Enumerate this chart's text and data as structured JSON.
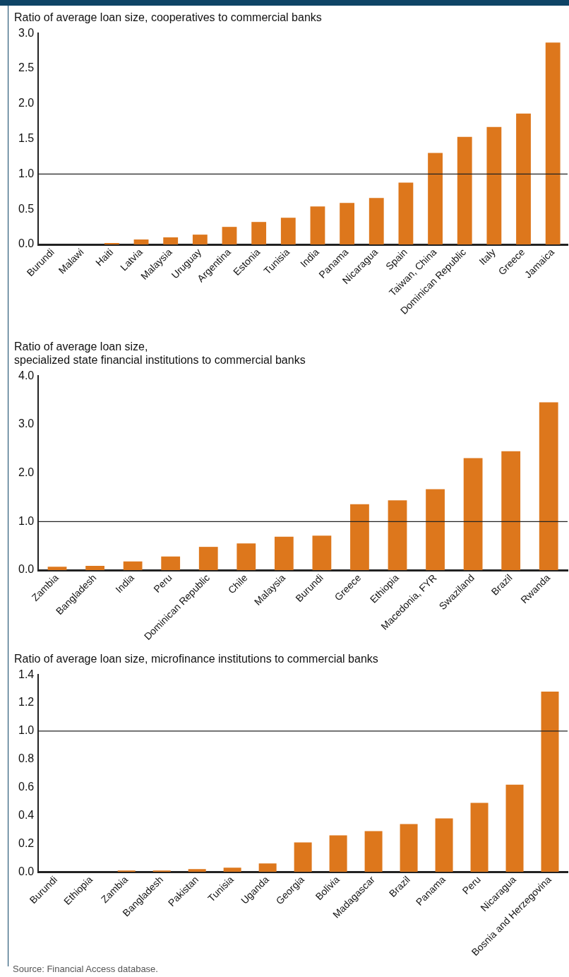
{
  "chart_data": [
    {
      "type": "bar",
      "title": "Ratio of average loan size, cooperatives to commercial banks",
      "categories": [
        "Burundi",
        "Malawi",
        "Haiti",
        "Latvia",
        "Malaysia",
        "Uruguay",
        "Argentina",
        "Estonia",
        "Tunisia",
        "India",
        "Panama",
        "Nicaragua",
        "Spain",
        "Taiwan, China",
        "Dominican Republic",
        "Italy",
        "Greece",
        "Jamaica"
      ],
      "values": [
        0,
        0,
        0.02,
        0.07,
        0.1,
        0.14,
        0.25,
        0.32,
        0.38,
        0.54,
        0.59,
        0.66,
        0.88,
        1.3,
        1.53,
        1.67,
        1.86,
        2.87
      ],
      "color": "#dd771c",
      "ylim": [
        0,
        3
      ],
      "yticks": [
        {
          "value": 0,
          "label": "0.0"
        },
        {
          "value": 0.5,
          "label": "0.5"
        },
        {
          "value": 1,
          "label": "1.0"
        },
        {
          "value": 1.5,
          "label": "1.5"
        },
        {
          "value": 2,
          "label": "2.0"
        },
        {
          "value": 2.5,
          "label": "2.5"
        },
        {
          "value": 3,
          "label": "3.0"
        }
      ],
      "ref_lines": [
        {
          "axis": "y",
          "value": 1,
          "color": "#222222"
        }
      ],
      "grid": false,
      "legend": false
    },
    {
      "type": "bar",
      "title": "Ratio of average loan size,\nspecialized state financial institutions to commercial banks",
      "categories": [
        "Zambia",
        "Bangladesh",
        "India",
        "Peru",
        "Dominican Republic",
        "Chile",
        "Malaysia",
        "Burundi",
        "Greece",
        "Ethiopia",
        "Macedonia, FYR",
        "Swaziland",
        "Brazil",
        "Rwanda"
      ],
      "values": [
        0.07,
        0.09,
        0.18,
        0.28,
        0.48,
        0.55,
        0.69,
        0.71,
        1.36,
        1.44,
        1.67,
        2.31,
        2.45,
        3.46
      ],
      "color": "#dd771c",
      "ylim": [
        0,
        4
      ],
      "yticks": [
        {
          "value": 0,
          "label": "0.0"
        },
        {
          "value": 1,
          "label": "1.0"
        },
        {
          "value": 2,
          "label": "2.0"
        },
        {
          "value": 3,
          "label": "3.0"
        },
        {
          "value": 4,
          "label": "4.0"
        }
      ],
      "ref_lines": [
        {
          "axis": "y",
          "value": 1,
          "color": "#222222"
        }
      ],
      "grid": false,
      "legend": false
    },
    {
      "type": "bar",
      "title": "Ratio of average loan size, microfinance institutions to commercial banks",
      "categories": [
        "Burundi",
        "Ethiopia",
        "Zambia",
        "Bangladesh",
        "Pakistan",
        "Tunisia",
        "Uganda",
        "Georgia",
        "Bolivia",
        "Madagascar",
        "Brazil",
        "Panama",
        "Peru",
        "Nicaragua",
        "Bosnia and Herzegovina"
      ],
      "values": [
        0,
        0,
        0.01,
        0.01,
        0.02,
        0.03,
        0.06,
        0.21,
        0.26,
        0.29,
        0.34,
        0.38,
        0.49,
        0.62,
        1.28
      ],
      "color": "#dd771c",
      "ylim": [
        0,
        1.4
      ],
      "yticks": [
        {
          "value": 0,
          "label": "0.0"
        },
        {
          "value": 0.2,
          "label": "0.2"
        },
        {
          "value": 0.4,
          "label": "0.4"
        },
        {
          "value": 0.6,
          "label": "0.6"
        },
        {
          "value": 0.8,
          "label": "0.8"
        },
        {
          "value": 1,
          "label": "1.0"
        },
        {
          "value": 1.2,
          "label": "1.2"
        },
        {
          "value": 1.4,
          "label": "1.4"
        }
      ],
      "ref_lines": [
        {
          "axis": "y",
          "value": 1,
          "color": "#222222"
        }
      ],
      "grid": false,
      "legend": false,
      "annotations": [
        "Source: Financial Access database."
      ]
    }
  ]
}
